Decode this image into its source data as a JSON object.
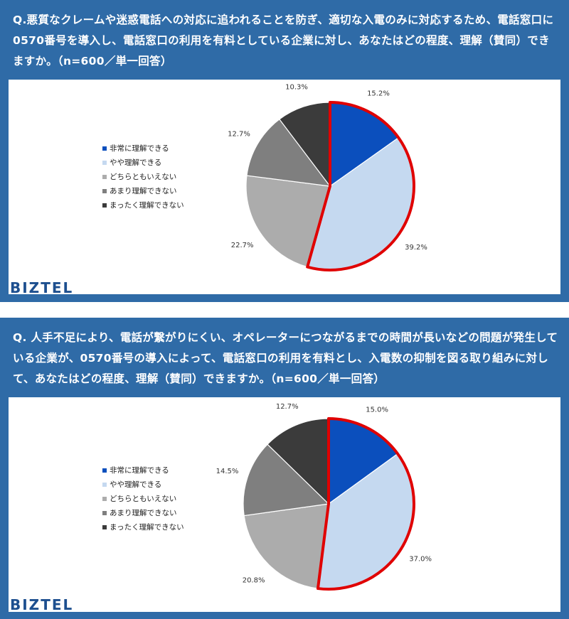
{
  "brand": "BIZTEL",
  "chart_data": [
    {
      "type": "pie",
      "question": "Q.悪質なクレームや迷惑電話への対応に追われることを防ぎ、適切な入電のみに対応するため、電話窓口に0570番号を導入し、電話窓口の利用を有料としている企業に対し、あなたはどの程度、理解（賛同）できますか。（n=600／単一回答）",
      "categories": [
        "非常に理解できる",
        "やや理解できる",
        "どちらともいえない",
        "あまり理解できない",
        "まったく理解できない"
      ],
      "values": [
        15.2,
        39.2,
        22.7,
        12.7,
        10.3
      ],
      "labels": [
        "15.2%",
        "39.2%",
        "22.7%",
        "12.7%",
        "10.3%"
      ],
      "colors": [
        "#0b4fbd",
        "#c5d9f0",
        "#acacac",
        "#7f7f7f",
        "#3b3b3b"
      ],
      "highlight_color": "#e00000",
      "highlight_indices": [
        0,
        1
      ],
      "legend_position": "left"
    },
    {
      "type": "pie",
      "question": "Q. 人手不足により、電話が繋がりにくい、オペレーターにつながるまでの時間が長いなどの問題が発生している企業が、0570番号の導入によって、電話窓口の利用を有料とし、入電数の抑制を図る取り組みに対して、あなたはどの程度、理解（賛同）できますか。（n=600／単一回答）",
      "categories": [
        "非常に理解できる",
        "やや理解できる",
        "どちらともいえない",
        "あまり理解できない",
        "まったく理解できない"
      ],
      "values": [
        15.0,
        37.0,
        20.8,
        14.5,
        12.7
      ],
      "labels": [
        "15.0%",
        "37.0%",
        "20.8%",
        "14.5%",
        "12.7%"
      ],
      "colors": [
        "#0b4fbd",
        "#c5d9f0",
        "#acacac",
        "#7f7f7f",
        "#3b3b3b"
      ],
      "highlight_color": "#e00000",
      "highlight_indices": [
        0,
        1
      ],
      "legend_position": "left"
    }
  ]
}
